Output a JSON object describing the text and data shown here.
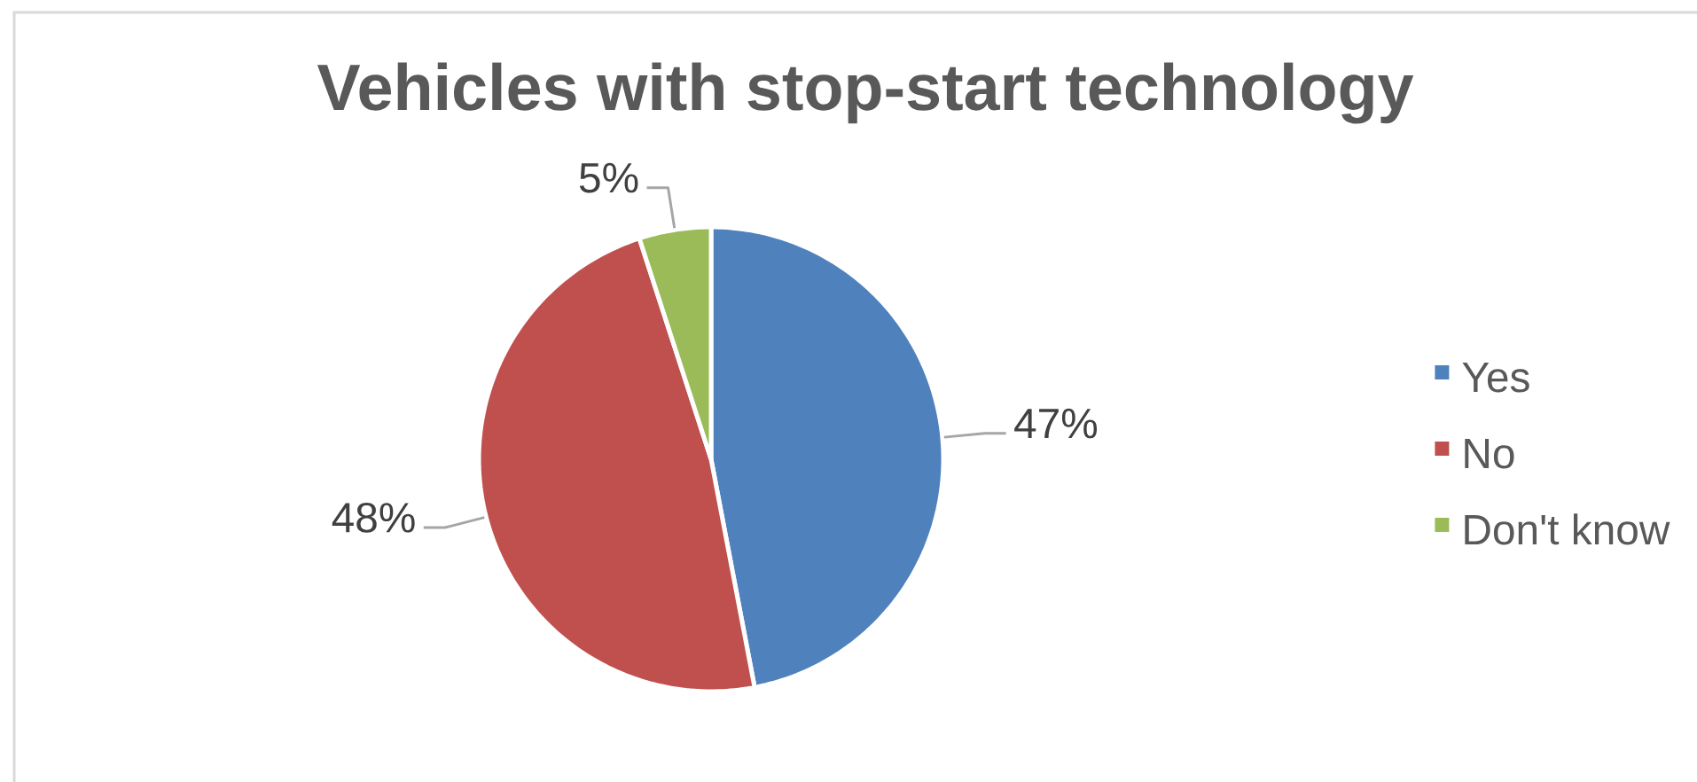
{
  "chart_data": {
    "type": "pie",
    "title": "Vehicles with stop-start technology",
    "categories": [
      "Yes",
      "No",
      "Don't know"
    ],
    "values": [
      47,
      48,
      5
    ],
    "colors": [
      "#4f81bd",
      "#c0504d",
      "#9bbb59"
    ],
    "value_labels": [
      "47%",
      "48%",
      "5%"
    ],
    "legend": "right"
  }
}
